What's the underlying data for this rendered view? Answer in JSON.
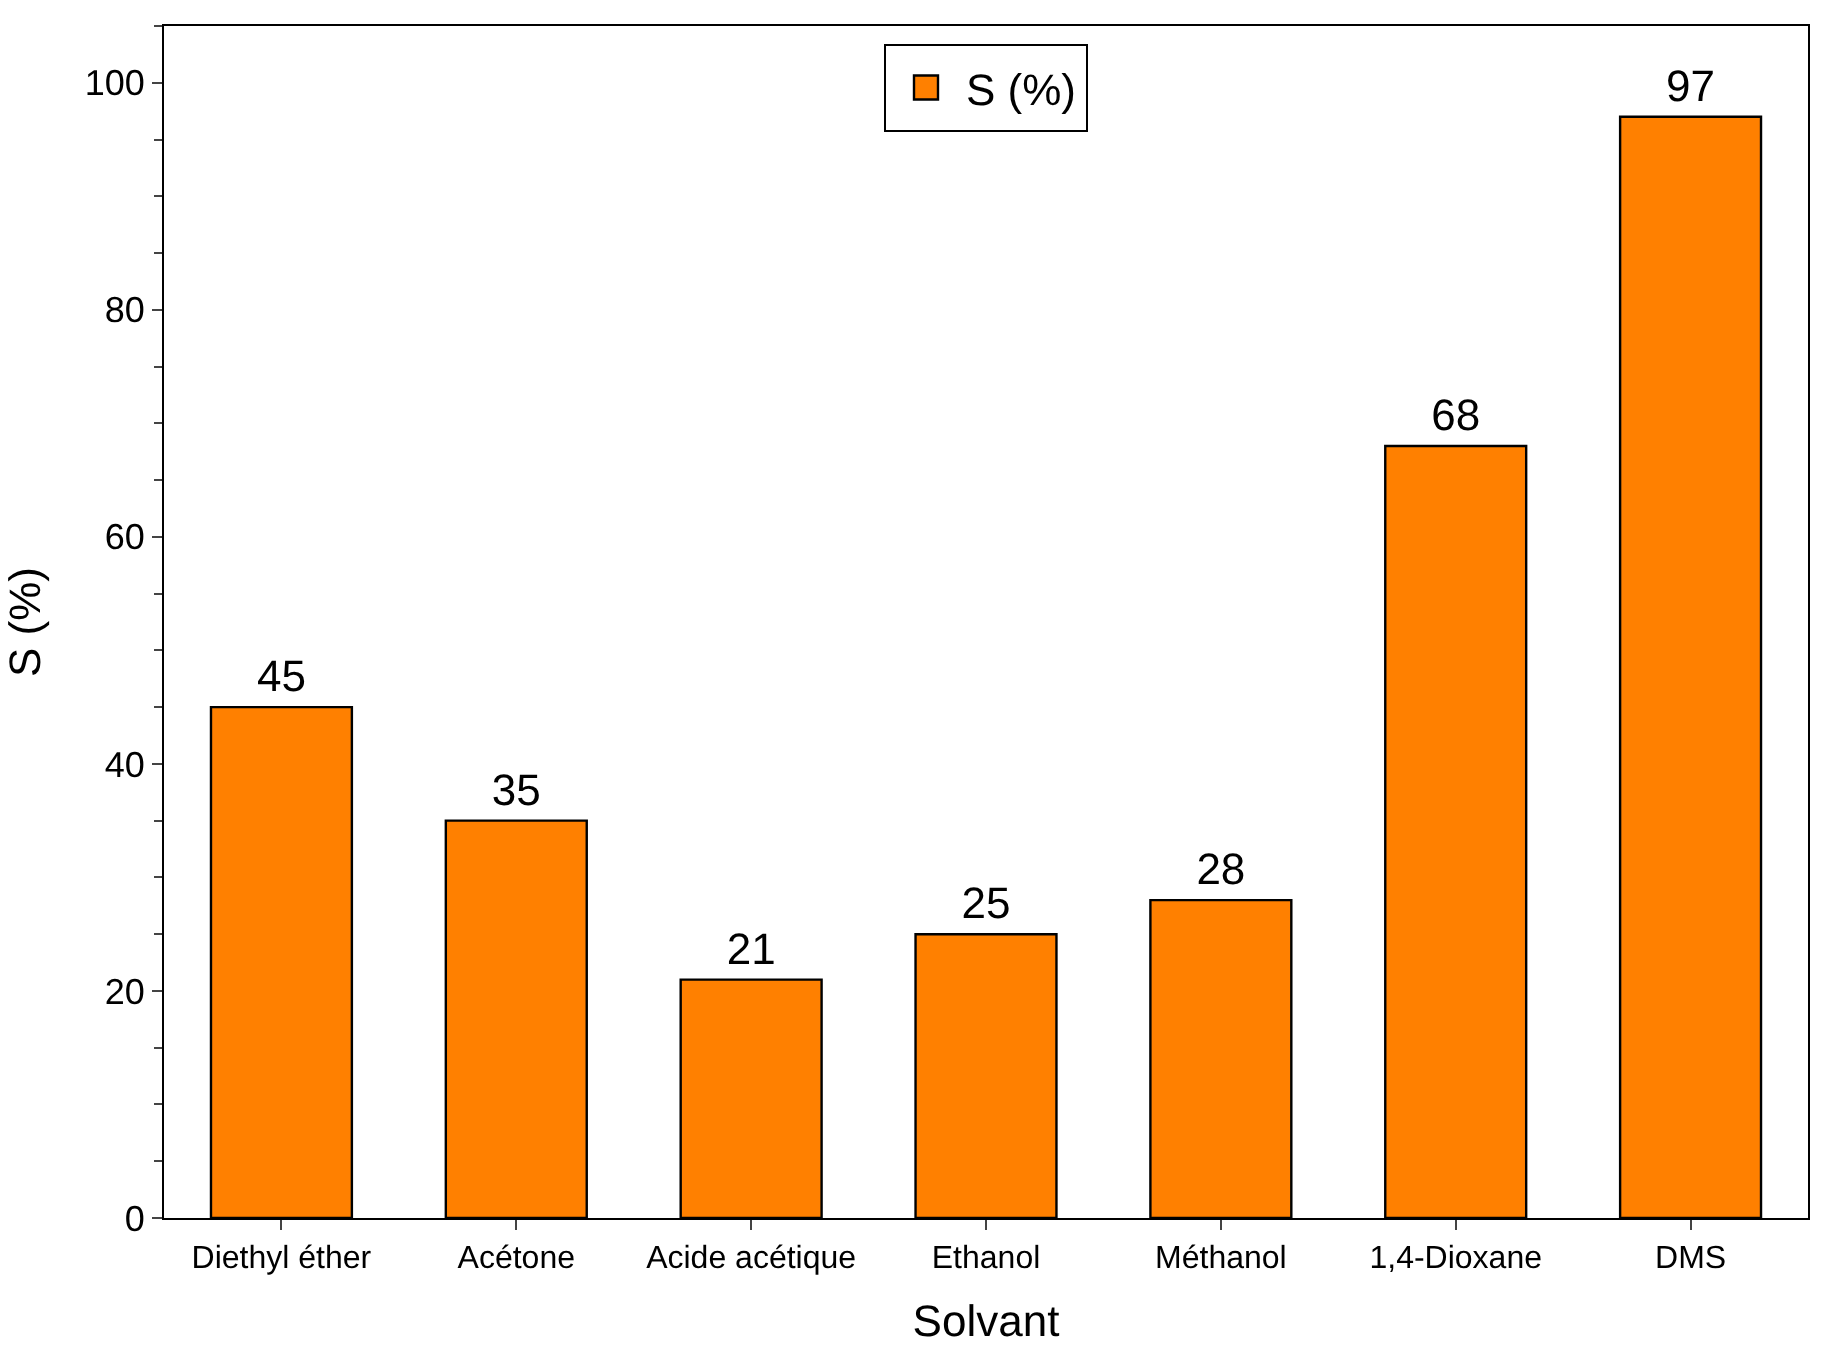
{
  "chart_data": {
    "type": "bar",
    "xlabel": "Solvant",
    "ylabel": "S (%)",
    "categories": [
      "Diethyl éther",
      "Acétone",
      "Acide acétique",
      "Ethanol",
      "Méthanol",
      "1,4-Dioxane",
      "DMS"
    ],
    "series": [
      {
        "name": "S (%)",
        "color": "#ff8000",
        "values": [
          45,
          35,
          21,
          25,
          28,
          68,
          97
        ]
      }
    ],
    "ylim": [
      0,
      105
    ],
    "yticks": [
      0,
      20,
      40,
      60,
      80,
      100
    ],
    "data_labels": true,
    "legend": "top"
  }
}
